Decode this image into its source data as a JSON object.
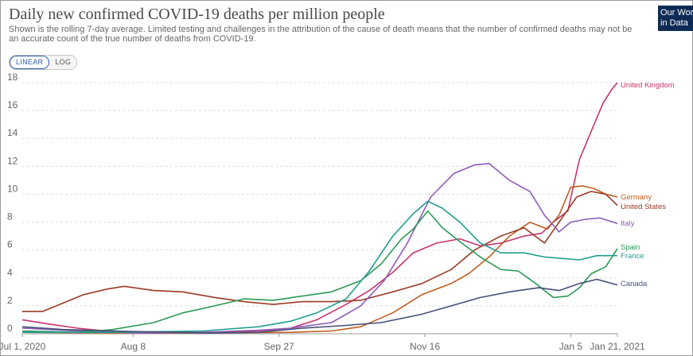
{
  "header": {
    "title": "Daily new confirmed COVID-19 deaths per million people",
    "subtitle": "Shown is the rolling 7-day average. Limited testing and challenges in the attribution of the cause of death means that the number of confirmed deaths may not be an accurate count of the true number of deaths from COVID-19.",
    "logo_line1": "Our World",
    "logo_line2": "in Data"
  },
  "controls": {
    "linear_label": "LINEAR",
    "log_label": "LOG",
    "selected": "LINEAR"
  },
  "chart_data": {
    "type": "line",
    "title": "Daily new confirmed COVID-19 deaths per million people",
    "ylim": [
      0,
      18
    ],
    "yticks": [
      0,
      2,
      4,
      6,
      8,
      10,
      12,
      14,
      16,
      18
    ],
    "xlim": [
      "2020-07-01",
      "2021-01-21"
    ],
    "xticks": [
      {
        "date": "2020-07-01",
        "label": "Jul 1, 2020"
      },
      {
        "date": "2020-08-08",
        "label": "Aug 8"
      },
      {
        "date": "2020-09-27",
        "label": "Sep 27"
      },
      {
        "date": "2020-11-16",
        "label": "Nov 16"
      },
      {
        "date": "2021-01-05",
        "label": "Jan 5"
      },
      {
        "date": "2021-01-21",
        "label": "Jan 21, 2021"
      }
    ],
    "grid": "horizontal-dotted",
    "legend": "end-of-line labels",
    "series": [
      {
        "name": "United Kingdom",
        "color": "#c8336d",
        "points": [
          [
            "2020-07-01",
            1.0
          ],
          [
            "2020-07-10",
            0.7
          ],
          [
            "2020-07-20",
            0.4
          ],
          [
            "2020-08-01",
            0.15
          ],
          [
            "2020-08-20",
            0.12
          ],
          [
            "2020-09-05",
            0.1
          ],
          [
            "2020-09-20",
            0.2
          ],
          [
            "2020-10-01",
            0.4
          ],
          [
            "2020-10-10",
            1.0
          ],
          [
            "2020-10-20",
            2.1
          ],
          [
            "2020-10-28",
            3.1
          ],
          [
            "2020-11-05",
            4.4
          ],
          [
            "2020-11-12",
            5.8
          ],
          [
            "2020-11-20",
            6.5
          ],
          [
            "2020-11-28",
            6.8
          ],
          [
            "2020-12-05",
            6.3
          ],
          [
            "2020-12-12",
            6.5
          ],
          [
            "2020-12-20",
            7.0
          ],
          [
            "2020-12-26",
            7.2
          ],
          [
            "2020-12-30",
            8.0
          ],
          [
            "2021-01-04",
            8.8
          ],
          [
            "2021-01-08",
            12.5
          ],
          [
            "2021-01-12",
            14.5
          ],
          [
            "2021-01-16",
            16.5
          ],
          [
            "2021-01-19",
            17.5
          ],
          [
            "2021-01-21",
            18.0
          ]
        ]
      },
      {
        "name": "Germany",
        "color": "#c15d1f",
        "points": [
          [
            "2020-07-01",
            0.1
          ],
          [
            "2020-08-01",
            0.05
          ],
          [
            "2020-09-01",
            0.05
          ],
          [
            "2020-10-01",
            0.1
          ],
          [
            "2020-10-15",
            0.2
          ],
          [
            "2020-10-25",
            0.5
          ],
          [
            "2020-11-05",
            1.5
          ],
          [
            "2020-11-15",
            2.8
          ],
          [
            "2020-11-25",
            3.6
          ],
          [
            "2020-12-01",
            4.3
          ],
          [
            "2020-12-08",
            5.5
          ],
          [
            "2020-12-15",
            7.0
          ],
          [
            "2020-12-22",
            8.0
          ],
          [
            "2020-12-28",
            7.5
          ],
          [
            "2021-01-01",
            8.5
          ],
          [
            "2021-01-05",
            10.5
          ],
          [
            "2021-01-09",
            10.6
          ],
          [
            "2021-01-13",
            10.4
          ],
          [
            "2021-01-17",
            10.0
          ],
          [
            "2021-01-21",
            9.8
          ]
        ]
      },
      {
        "name": "United States",
        "color": "#9a3a22",
        "points": [
          [
            "2020-07-01",
            1.6
          ],
          [
            "2020-07-08",
            1.6
          ],
          [
            "2020-07-15",
            2.2
          ],
          [
            "2020-07-22",
            2.8
          ],
          [
            "2020-07-30",
            3.2
          ],
          [
            "2020-08-05",
            3.4
          ],
          [
            "2020-08-15",
            3.1
          ],
          [
            "2020-08-25",
            3.0
          ],
          [
            "2020-09-05",
            2.6
          ],
          [
            "2020-09-15",
            2.3
          ],
          [
            "2020-09-25",
            2.1
          ],
          [
            "2020-10-05",
            2.3
          ],
          [
            "2020-10-15",
            2.3
          ],
          [
            "2020-10-25",
            2.4
          ],
          [
            "2020-11-05",
            3.0
          ],
          [
            "2020-11-15",
            3.6
          ],
          [
            "2020-11-25",
            4.6
          ],
          [
            "2020-12-03",
            6.0
          ],
          [
            "2020-12-12",
            7.0
          ],
          [
            "2020-12-20",
            7.6
          ],
          [
            "2020-12-27",
            6.5
          ],
          [
            "2021-01-01",
            8.0
          ],
          [
            "2021-01-07",
            9.8
          ],
          [
            "2021-01-12",
            10.2
          ],
          [
            "2021-01-17",
            10.0
          ],
          [
            "2021-01-21",
            9.2
          ]
        ]
      },
      {
        "name": "Italy",
        "color": "#8e5bb8",
        "points": [
          [
            "2020-07-01",
            0.4
          ],
          [
            "2020-07-20",
            0.2
          ],
          [
            "2020-08-10",
            0.05
          ],
          [
            "2020-09-01",
            0.1
          ],
          [
            "2020-09-20",
            0.25
          ],
          [
            "2020-10-01",
            0.4
          ],
          [
            "2020-10-15",
            0.8
          ],
          [
            "2020-10-25",
            2.0
          ],
          [
            "2020-11-02",
            3.8
          ],
          [
            "2020-11-10",
            6.5
          ],
          [
            "2020-11-18",
            9.8
          ],
          [
            "2020-11-26",
            11.5
          ],
          [
            "2020-12-03",
            12.1
          ],
          [
            "2020-12-08",
            12.2
          ],
          [
            "2020-12-15",
            11.0
          ],
          [
            "2020-12-22",
            10.2
          ],
          [
            "2020-12-27",
            8.5
          ],
          [
            "2021-01-01",
            7.3
          ],
          [
            "2021-01-05",
            8.0
          ],
          [
            "2021-01-10",
            8.2
          ],
          [
            "2021-01-15",
            8.3
          ],
          [
            "2021-01-21",
            7.9
          ]
        ]
      },
      {
        "name": "Spain",
        "color": "#2a9a54",
        "points": [
          [
            "2020-07-01",
            0.2
          ],
          [
            "2020-07-20",
            0.1
          ],
          [
            "2020-08-01",
            0.3
          ],
          [
            "2020-08-15",
            0.8
          ],
          [
            "2020-08-25",
            1.5
          ],
          [
            "2020-09-05",
            2.0
          ],
          [
            "2020-09-15",
            2.5
          ],
          [
            "2020-09-25",
            2.4
          ],
          [
            "2020-10-05",
            2.7
          ],
          [
            "2020-10-15",
            3.0
          ],
          [
            "2020-10-25",
            3.8
          ],
          [
            "2020-11-01",
            5.0
          ],
          [
            "2020-11-08",
            6.8
          ],
          [
            "2020-11-12",
            7.5
          ],
          [
            "2020-11-17",
            8.8
          ],
          [
            "2020-11-22",
            7.6
          ],
          [
            "2020-11-28",
            6.6
          ],
          [
            "2020-12-05",
            5.5
          ],
          [
            "2020-12-12",
            4.6
          ],
          [
            "2020-12-18",
            4.5
          ],
          [
            "2020-12-24",
            3.6
          ],
          [
            "2020-12-30",
            2.6
          ],
          [
            "2021-01-04",
            2.7
          ],
          [
            "2021-01-08",
            3.3
          ],
          [
            "2021-01-12",
            4.3
          ],
          [
            "2021-01-17",
            4.8
          ],
          [
            "2021-01-21",
            6.1
          ]
        ]
      },
      {
        "name": "France",
        "color": "#219e91",
        "points": [
          [
            "2020-07-01",
            0.1
          ],
          [
            "2020-08-01",
            0.1
          ],
          [
            "2020-09-01",
            0.2
          ],
          [
            "2020-09-20",
            0.5
          ],
          [
            "2020-10-01",
            0.9
          ],
          [
            "2020-10-10",
            1.5
          ],
          [
            "2020-10-20",
            2.5
          ],
          [
            "2020-10-28",
            4.5
          ],
          [
            "2020-11-05",
            7.0
          ],
          [
            "2020-11-12",
            8.6
          ],
          [
            "2020-11-17",
            9.5
          ],
          [
            "2020-11-22",
            9.0
          ],
          [
            "2020-11-28",
            8.0
          ],
          [
            "2020-12-05",
            6.5
          ],
          [
            "2020-12-12",
            5.8
          ],
          [
            "2020-12-20",
            5.8
          ],
          [
            "2020-12-27",
            5.5
          ],
          [
            "2021-01-02",
            5.4
          ],
          [
            "2021-01-08",
            5.3
          ],
          [
            "2021-01-14",
            5.6
          ],
          [
            "2021-01-21",
            5.6
          ]
        ]
      },
      {
        "name": "Canada",
        "color": "#46507a",
        "points": [
          [
            "2020-07-01",
            0.5
          ],
          [
            "2020-07-15",
            0.3
          ],
          [
            "2020-08-01",
            0.2
          ],
          [
            "2020-09-01",
            0.05
          ],
          [
            "2020-09-20",
            0.1
          ],
          [
            "2020-10-05",
            0.4
          ],
          [
            "2020-10-20",
            0.6
          ],
          [
            "2020-11-01",
            0.8
          ],
          [
            "2020-11-15",
            1.4
          ],
          [
            "2020-11-25",
            2.0
          ],
          [
            "2020-12-05",
            2.6
          ],
          [
            "2020-12-15",
            3.0
          ],
          [
            "2020-12-25",
            3.3
          ],
          [
            "2021-01-01",
            3.1
          ],
          [
            "2021-01-08",
            3.6
          ],
          [
            "2021-01-14",
            3.9
          ],
          [
            "2021-01-21",
            3.5
          ]
        ]
      }
    ]
  }
}
